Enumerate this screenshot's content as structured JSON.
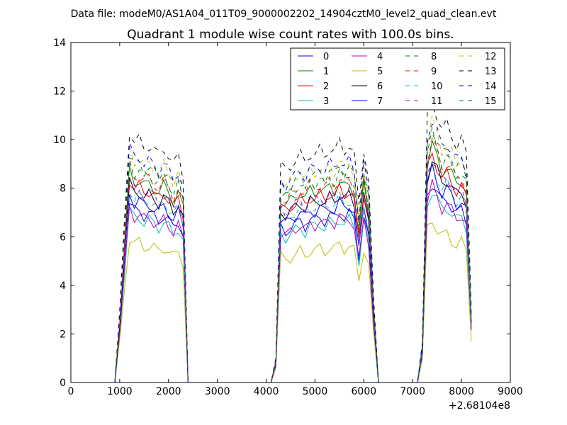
{
  "header": {
    "suptitle": "Data file: modeM0/AS1A04_011T09_9000002202_14904cztM0_level2_quad_clean.evt",
    "title": "Quadrant 1 module wise count rates with 100.0s bins."
  },
  "chart_data": {
    "type": "line",
    "xlim": [
      0,
      9000
    ],
    "ylim": [
      0,
      14
    ],
    "x_ticks": [
      "0",
      "1000",
      "2000",
      "3000",
      "4000",
      "5000",
      "6000",
      "7000",
      "8000",
      "9000"
    ],
    "y_ticks": [
      "0",
      "2",
      "4",
      "6",
      "8",
      "10",
      "12",
      "14"
    ],
    "x_offset_label": "+2.68104e8",
    "grid": false,
    "legend_position": "top-right",
    "x": [
      100,
      200,
      300,
      400,
      500,
      600,
      700,
      800,
      900,
      1000,
      1100,
      1200,
      1300,
      1400,
      1500,
      1600,
      1700,
      1800,
      1900,
      2000,
      2100,
      2200,
      2300,
      2400,
      2500,
      2600,
      2700,
      2800,
      2900,
      3000,
      3100,
      3200,
      3300,
      3400,
      3500,
      3600,
      3700,
      3800,
      3900,
      4000,
      4100,
      4200,
      4300,
      4400,
      4500,
      4600,
      4700,
      4800,
      4900,
      5000,
      5100,
      5200,
      5300,
      5400,
      5500,
      5600,
      5700,
      5800,
      5900,
      6000,
      6100,
      6200,
      6300,
      6400,
      6500,
      6600,
      6700,
      6800,
      6900,
      7000,
      7100,
      7200,
      7300,
      7400,
      7500,
      7600,
      7700,
      7800,
      7900,
      8000,
      8100,
      8200
    ],
    "profile": [
      0,
      0,
      0,
      0,
      0,
      0,
      0,
      0,
      0,
      0.28,
      0.65,
      1.0,
      0.95,
      0.96,
      0.93,
      0.94,
      0.92,
      0.9,
      0.93,
      0.9,
      0.86,
      0.9,
      0.82,
      0,
      0,
      0,
      0,
      0,
      0,
      0,
      0,
      0,
      0,
      0,
      0,
      0,
      0,
      0,
      0,
      0,
      0,
      0.1,
      0.86,
      0.84,
      0.86,
      0.88,
      0.9,
      0.87,
      0.91,
      0.9,
      0.92,
      0.9,
      0.93,
      0.91,
      0.95,
      0.92,
      0.94,
      0.9,
      0.7,
      0.93,
      0.8,
      0.33,
      0,
      0,
      0,
      0,
      0,
      0,
      0,
      0,
      0,
      0.16,
      1.04,
      1.12,
      1.06,
      1.0,
      1.02,
      0.98,
      0.94,
      0.96,
      0.9,
      0.3
    ],
    "series": [
      {
        "name": "0",
        "level": 7.4,
        "color": "#0000ff",
        "dash": false
      },
      {
        "name": "1",
        "level": 8.7,
        "color": "#008000",
        "dash": false
      },
      {
        "name": "2",
        "level": 8.4,
        "color": "#ff0000",
        "dash": false
      },
      {
        "name": "3",
        "level": 7.1,
        "color": "#00bfbf",
        "dash": false
      },
      {
        "name": "4",
        "level": 7.2,
        "color": "#bf00bf",
        "dash": false
      },
      {
        "name": "5",
        "level": 6.0,
        "color": "#bfbf00",
        "dash": false
      },
      {
        "name": "6",
        "level": 8.2,
        "color": "#000000",
        "dash": false
      },
      {
        "name": "7",
        "level": 7.8,
        "color": "#0000ff",
        "dash": false
      },
      {
        "name": "8",
        "level": 9.4,
        "color": "#008000",
        "dash": true
      },
      {
        "name": "9",
        "level": 8.9,
        "color": "#ff0000",
        "dash": true
      },
      {
        "name": "10",
        "level": 8.0,
        "color": "#00bfbf",
        "dash": true
      },
      {
        "name": "11",
        "level": 8.3,
        "color": "#bf00bf",
        "dash": true
      },
      {
        "name": "12",
        "level": 9.6,
        "color": "#bfbf00",
        "dash": true
      },
      {
        "name": "13",
        "level": 10.4,
        "color": "#000000",
        "dash": true
      },
      {
        "name": "14",
        "level": 9.7,
        "color": "#0000ff",
        "dash": true
      },
      {
        "name": "15",
        "level": 9.1,
        "color": "#008000",
        "dash": true
      }
    ]
  }
}
